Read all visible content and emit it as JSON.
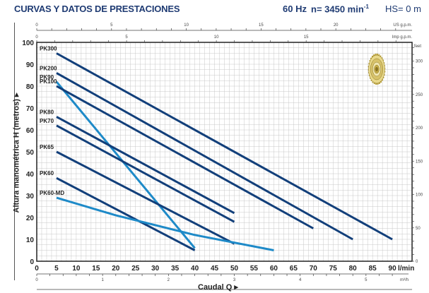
{
  "header": {
    "title": "CURVAS Y DATOS DE PRESTACIONES",
    "frequency": "60 Hz",
    "speed_prefix": "n= 3450 min",
    "speed_sup": "-1",
    "hs": "HS= 0 m"
  },
  "axes": {
    "ylabel": "Altura manométrica H (metros) ▸",
    "xlabel": "Caudal Q ▸",
    "x_unit": "l/min",
    "x_unit_m3h": "m³/h",
    "us_gpm_unit": "US g.p.m.",
    "imp_gpm_unit": "Imp g.p.m.",
    "feet_unit": "feet"
  },
  "colors": {
    "dark_curve": "#123f7a",
    "light_curve": "#1e8ac8",
    "grid": "#c8c8c8",
    "title": "#1f3b73"
  },
  "chart_data": {
    "type": "line",
    "title": "CURVAS Y DATOS DE PRESTACIONES",
    "subtitle": "60 Hz  n= 3450 min-1  HS= 0 m",
    "xlabel": "Caudal Q (l/min)",
    "ylabel": "Altura manométrica H (metros)",
    "xlim": [
      0,
      95
    ],
    "ylim": [
      0,
      100
    ],
    "x_ticks": [
      0,
      5,
      10,
      15,
      20,
      25,
      30,
      35,
      40,
      45,
      50,
      55,
      60,
      65,
      70,
      75,
      80,
      85,
      90
    ],
    "y_ticks": [
      0,
      10,
      20,
      30,
      40,
      50,
      60,
      70,
      80,
      90,
      100
    ],
    "secondary_axes": {
      "top_us_gpm_ticks": [
        0,
        5,
        10,
        15,
        20
      ],
      "top_imp_gpm_ticks": [
        0,
        5,
        10,
        15
      ],
      "bottom_m3h_ticks": [
        0,
        1,
        2,
        3,
        4,
        5
      ],
      "right_feet_ticks": [
        0,
        50,
        100,
        150,
        200,
        250,
        300
      ]
    },
    "grid": true,
    "series": [
      {
        "name": "PK300",
        "color": "dark",
        "x": [
          5,
          90
        ],
        "y": [
          95,
          10
        ]
      },
      {
        "name": "PK200",
        "color": "dark",
        "x": [
          5,
          80
        ],
        "y": [
          86,
          10
        ]
      },
      {
        "name": "PK90",
        "color": "light",
        "x": [
          5,
          40
        ],
        "y": [
          82,
          6
        ]
      },
      {
        "name": "PK100",
        "color": "dark",
        "x": [
          5,
          70
        ],
        "y": [
          80,
          15
        ]
      },
      {
        "name": "PK80",
        "color": "dark",
        "x": [
          5,
          50
        ],
        "y": [
          66,
          22
        ]
      },
      {
        "name": "PK70",
        "color": "dark",
        "x": [
          5,
          50
        ],
        "y": [
          62,
          18
        ]
      },
      {
        "name": "PK65",
        "color": "dark",
        "x": [
          5,
          50
        ],
        "y": [
          50,
          8
        ]
      },
      {
        "name": "PK60",
        "color": "dark",
        "x": [
          5,
          40
        ],
        "y": [
          38,
          5
        ]
      },
      {
        "name": "PK60-MD",
        "color": "light",
        "x": [
          5,
          20,
          40,
          60
        ],
        "y": [
          29,
          21,
          12,
          5
        ]
      }
    ]
  }
}
